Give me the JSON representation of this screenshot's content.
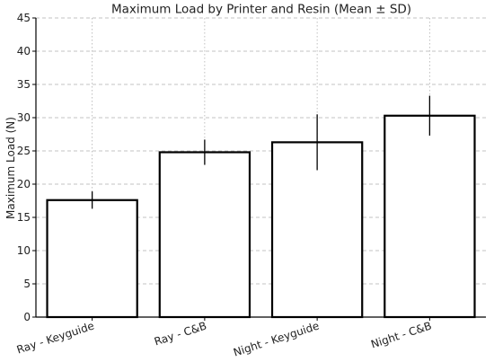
{
  "chart_data": {
    "type": "bar",
    "title": "Maximum Load by Printer and Resin (Mean ± SD)",
    "xlabel": "",
    "ylabel": "Maximum Load (N)",
    "categories": [
      "Ray - Keyguide",
      "Ray - C&B",
      "Night - Keyguide",
      "Night - C&B"
    ],
    "values": [
      17.6,
      24.8,
      26.3,
      30.3
    ],
    "sd": [
      1.3,
      1.9,
      4.2,
      3.0
    ],
    "ylim": [
      0,
      45
    ],
    "yticks": [
      0,
      5,
      10,
      15,
      20,
      25,
      30,
      35,
      40,
      45
    ],
    "grid": true,
    "colors": {
      "bar_fill": "#ffffff",
      "bar_edge": "#000000",
      "error_bar": "#000000",
      "grid": "#b0b0b0"
    }
  }
}
